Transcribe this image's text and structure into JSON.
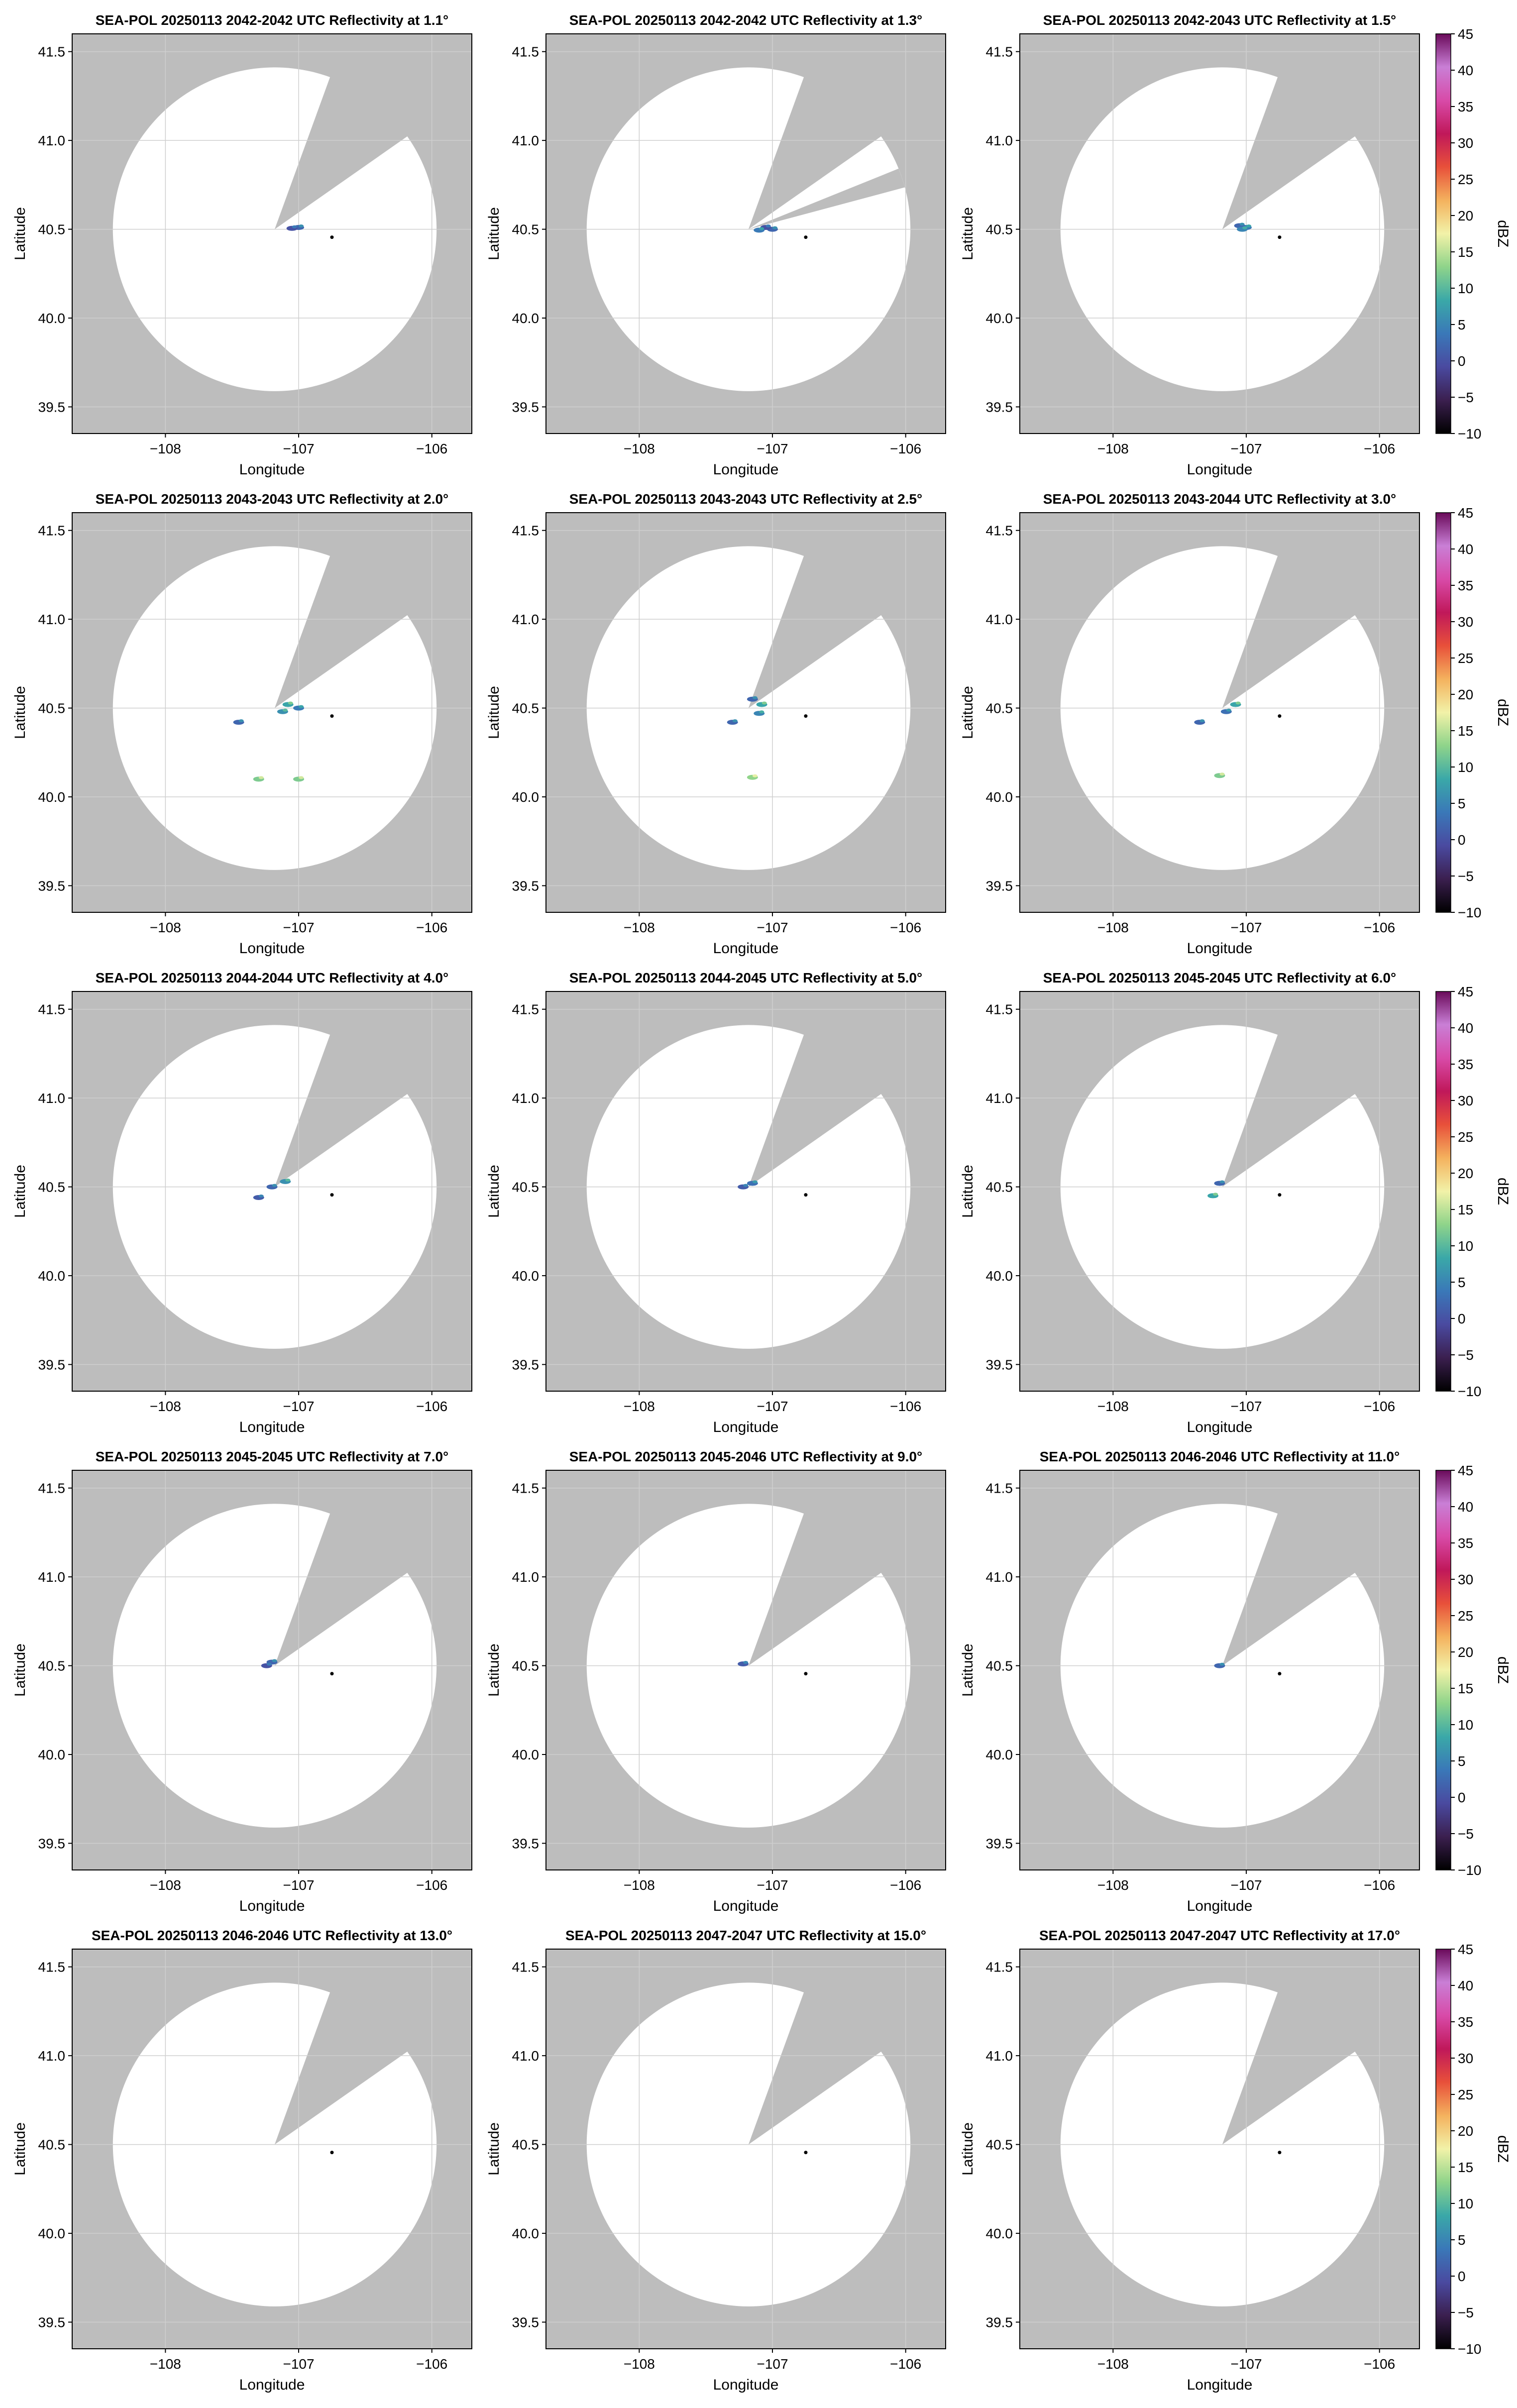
{
  "figure": {
    "colors": {
      "no_data_gray": "#bdbdbd",
      "sweep_white": "#ffffff",
      "grid": "#cfcfcf",
      "frame": "#000000"
    },
    "radar_site": {
      "lon": -107.18,
      "lat": 40.5
    },
    "marker": {
      "lon": -106.75,
      "lat": 40.455
    },
    "blocked_sector_deg": [
      20,
      55
    ],
    "rings_visible": false
  },
  "chart_data": [
    {
      "type": "heatmap",
      "title": "SEA-POL 20250113 2042-2042 UTC Reflectivity at 1.1°",
      "xlabel": "Longitude",
      "ylabel": "Latitude",
      "xlim": [
        -108.7,
        -105.7
      ],
      "ylim": [
        39.35,
        41.6
      ],
      "xticks": [
        -108,
        -107,
        -106
      ],
      "xtick_labels": [
        "−108",
        "−107",
        "−106"
      ],
      "yticks": [
        39.5,
        40.0,
        40.5,
        41.0,
        41.5
      ],
      "ytick_labels": [
        "39.5",
        "40.0",
        "40.5",
        "41.0",
        "41.5"
      ],
      "grid": true,
      "colorbar": false,
      "echoes": [
        {
          "lon": -107.0,
          "lat": 40.51,
          "dbz": 2
        },
        {
          "lon": -107.05,
          "lat": 40.505,
          "dbz": 0
        }
      ]
    },
    {
      "type": "heatmap",
      "title": "SEA-POL 20250113 2042-2042 UTC Reflectivity at 1.3°",
      "xlabel": "Longitude",
      "ylabel": "Latitude",
      "xlim": [
        -108.7,
        -105.7
      ],
      "ylim": [
        39.35,
        41.6
      ],
      "xticks": [
        -108,
        -107,
        -106
      ],
      "xtick_labels": [
        "−108",
        "−107",
        "−106"
      ],
      "yticks": [
        39.5,
        40.0,
        40.5,
        41.0,
        41.5
      ],
      "ytick_labels": [
        "39.5",
        "40.0",
        "40.5",
        "41.0",
        "41.5"
      ],
      "grid": true,
      "colorbar": false,
      "extra_blocked_sector_deg": [
        68,
        75
      ],
      "echoes": [
        {
          "lon": -107.0,
          "lat": 40.5,
          "dbz": 2
        },
        {
          "lon": -107.05,
          "lat": 40.51,
          "dbz": 0
        },
        {
          "lon": -107.1,
          "lat": 40.495,
          "dbz": 4
        }
      ]
    },
    {
      "type": "heatmap",
      "title": "SEA-POL 20250113 2042-2043 UTC Reflectivity at 1.5°",
      "xlabel": "Longitude",
      "ylabel": "Latitude",
      "xlim": [
        -108.7,
        -105.7
      ],
      "ylim": [
        39.35,
        41.6
      ],
      "xticks": [
        -108,
        -107,
        -106
      ],
      "xtick_labels": [
        "−108",
        "−107",
        "−106"
      ],
      "yticks": [
        39.5,
        40.0,
        40.5,
        41.0,
        41.5
      ],
      "ytick_labels": [
        "39.5",
        "40.0",
        "40.5",
        "41.0",
        "41.5"
      ],
      "grid": true,
      "colorbar": true,
      "colorbar_label": "dBZ",
      "echoes": [
        {
          "lon": -107.0,
          "lat": 40.51,
          "dbz": 4
        },
        {
          "lon": -107.05,
          "lat": 40.52,
          "dbz": 2
        },
        {
          "lon": -107.03,
          "lat": 40.5,
          "dbz": 5
        }
      ]
    },
    {
      "type": "heatmap",
      "title": "SEA-POL 20250113 2043-2043 UTC Reflectivity at 2.0°",
      "xlabel": "Longitude",
      "ylabel": "Latitude",
      "xlim": [
        -108.7,
        -105.7
      ],
      "ylim": [
        39.35,
        41.6
      ],
      "xticks": [
        -108,
        -107,
        -106
      ],
      "xtick_labels": [
        "−108",
        "−107",
        "−106"
      ],
      "yticks": [
        39.5,
        40.0,
        40.5,
        41.0,
        41.5
      ],
      "ytick_labels": [
        "39.5",
        "40.0",
        "40.5",
        "41.0",
        "41.5"
      ],
      "grid": true,
      "colorbar": false,
      "echoes": [
        {
          "lon": -107.08,
          "lat": 40.52,
          "dbz": 8
        },
        {
          "lon": -107.12,
          "lat": 40.48,
          "dbz": 6
        },
        {
          "lon": -107.0,
          "lat": 40.5,
          "dbz": 4
        },
        {
          "lon": -107.45,
          "lat": 40.42,
          "dbz": 2
        },
        {
          "lon": -107.3,
          "lat": 40.1,
          "dbz": 12
        },
        {
          "lon": -107.0,
          "lat": 40.1,
          "dbz": 12
        }
      ]
    },
    {
      "type": "heatmap",
      "title": "SEA-POL 20250113 2043-2043 UTC Reflectivity at 2.5°",
      "xlabel": "Longitude",
      "ylabel": "Latitude",
      "xlim": [
        -108.7,
        -105.7
      ],
      "ylim": [
        39.35,
        41.6
      ],
      "xticks": [
        -108,
        -107,
        -106
      ],
      "xtick_labels": [
        "−108",
        "−107",
        "−106"
      ],
      "yticks": [
        39.5,
        40.0,
        40.5,
        41.0,
        41.5
      ],
      "ytick_labels": [
        "39.5",
        "40.0",
        "40.5",
        "41.0",
        "41.5"
      ],
      "grid": true,
      "colorbar": false,
      "echoes": [
        {
          "lon": -107.08,
          "lat": 40.52,
          "dbz": 8
        },
        {
          "lon": -107.15,
          "lat": 40.55,
          "dbz": 2
        },
        {
          "lon": -107.1,
          "lat": 40.47,
          "dbz": 5
        },
        {
          "lon": -107.3,
          "lat": 40.42,
          "dbz": 2
        },
        {
          "lon": -107.15,
          "lat": 40.11,
          "dbz": 13
        }
      ]
    },
    {
      "type": "heatmap",
      "title": "SEA-POL 20250113 2043-2044 UTC Reflectivity at 3.0°",
      "xlabel": "Longitude",
      "ylabel": "Latitude",
      "xlim": [
        -108.7,
        -105.7
      ],
      "ylim": [
        39.35,
        41.6
      ],
      "xticks": [
        -108,
        -107,
        -106
      ],
      "xtick_labels": [
        "−108",
        "−107",
        "−106"
      ],
      "yticks": [
        39.5,
        40.0,
        40.5,
        41.0,
        41.5
      ],
      "ytick_labels": [
        "39.5",
        "40.0",
        "40.5",
        "41.0",
        "41.5"
      ],
      "grid": true,
      "colorbar": true,
      "colorbar_label": "dBZ",
      "echoes": [
        {
          "lon": -107.08,
          "lat": 40.52,
          "dbz": 8
        },
        {
          "lon": -107.15,
          "lat": 40.48,
          "dbz": 3
        },
        {
          "lon": -107.35,
          "lat": 40.42,
          "dbz": 2
        },
        {
          "lon": -107.2,
          "lat": 40.12,
          "dbz": 12
        }
      ]
    },
    {
      "type": "heatmap",
      "title": "SEA-POL 20250113 2044-2044 UTC Reflectivity at 4.0°",
      "xlabel": "Longitude",
      "ylabel": "Latitude",
      "xlim": [
        -108.7,
        -105.7
      ],
      "ylim": [
        39.35,
        41.6
      ],
      "xticks": [
        -108,
        -107,
        -106
      ],
      "xtick_labels": [
        "−108",
        "−107",
        "−106"
      ],
      "yticks": [
        39.5,
        40.0,
        40.5,
        41.0,
        41.5
      ],
      "ytick_labels": [
        "39.5",
        "40.0",
        "40.5",
        "41.0",
        "41.5"
      ],
      "grid": true,
      "colorbar": false,
      "echoes": [
        {
          "lon": -107.1,
          "lat": 40.53,
          "dbz": 6
        },
        {
          "lon": -107.2,
          "lat": 40.5,
          "dbz": 2
        },
        {
          "lon": -107.3,
          "lat": 40.44,
          "dbz": 1
        }
      ]
    },
    {
      "type": "heatmap",
      "title": "SEA-POL 20250113 2044-2045 UTC Reflectivity at 5.0°",
      "xlabel": "Longitude",
      "ylabel": "Latitude",
      "xlim": [
        -108.7,
        -105.7
      ],
      "ylim": [
        39.35,
        41.6
      ],
      "xticks": [
        -108,
        -107,
        -106
      ],
      "xtick_labels": [
        "−108",
        "−107",
        "−106"
      ],
      "yticks": [
        39.5,
        40.0,
        40.5,
        41.0,
        41.5
      ],
      "ytick_labels": [
        "39.5",
        "40.0",
        "40.5",
        "41.0",
        "41.5"
      ],
      "grid": true,
      "colorbar": false,
      "echoes": [
        {
          "lon": -107.15,
          "lat": 40.52,
          "dbz": 3
        },
        {
          "lon": -107.22,
          "lat": 40.5,
          "dbz": 1
        }
      ]
    },
    {
      "type": "heatmap",
      "title": "SEA-POL 20250113 2045-2045 UTC Reflectivity at 6.0°",
      "xlabel": "Longitude",
      "ylabel": "Latitude",
      "xlim": [
        -108.7,
        -105.7
      ],
      "ylim": [
        39.35,
        41.6
      ],
      "xticks": [
        -108,
        -107,
        -106
      ],
      "xtick_labels": [
        "−108",
        "−107",
        "−106"
      ],
      "yticks": [
        39.5,
        40.0,
        40.5,
        41.0,
        41.5
      ],
      "ytick_labels": [
        "39.5",
        "40.0",
        "40.5",
        "41.0",
        "41.5"
      ],
      "grid": true,
      "colorbar": true,
      "colorbar_label": "dBZ",
      "echoes": [
        {
          "lon": -107.2,
          "lat": 40.52,
          "dbz": 2
        },
        {
          "lon": -107.25,
          "lat": 40.45,
          "dbz": 8
        }
      ]
    },
    {
      "type": "heatmap",
      "title": "SEA-POL 20250113 2045-2045 UTC Reflectivity at 7.0°",
      "xlabel": "Longitude",
      "ylabel": "Latitude",
      "xlim": [
        -108.7,
        -105.7
      ],
      "ylim": [
        39.35,
        41.6
      ],
      "xticks": [
        -108,
        -107,
        -106
      ],
      "xtick_labels": [
        "−108",
        "−107",
        "−106"
      ],
      "yticks": [
        39.5,
        40.0,
        40.5,
        41.0,
        41.5
      ],
      "ytick_labels": [
        "39.5",
        "40.0",
        "40.5",
        "41.0",
        "41.5"
      ],
      "grid": true,
      "colorbar": false,
      "echoes": [
        {
          "lon": -107.2,
          "lat": 40.52,
          "dbz": 2
        },
        {
          "lon": -107.24,
          "lat": 40.5,
          "dbz": 0
        }
      ]
    },
    {
      "type": "heatmap",
      "title": "SEA-POL 20250113 2045-2046 UTC Reflectivity at 9.0°",
      "xlabel": "Longitude",
      "ylabel": "Latitude",
      "xlim": [
        -108.7,
        -105.7
      ],
      "ylim": [
        39.35,
        41.6
      ],
      "xticks": [
        -108,
        -107,
        -106
      ],
      "xtick_labels": [
        "−108",
        "−107",
        "−106"
      ],
      "yticks": [
        39.5,
        40.0,
        40.5,
        41.0,
        41.5
      ],
      "ytick_labels": [
        "39.5",
        "40.0",
        "40.5",
        "41.0",
        "41.5"
      ],
      "grid": true,
      "colorbar": false,
      "echoes": [
        {
          "lon": -107.22,
          "lat": 40.51,
          "dbz": 1
        }
      ]
    },
    {
      "type": "heatmap",
      "title": "SEA-POL 20250113 2046-2046 UTC Reflectivity at 11.0°",
      "xlabel": "Longitude",
      "ylabel": "Latitude",
      "xlim": [
        -108.7,
        -105.7
      ],
      "ylim": [
        39.35,
        41.6
      ],
      "xticks": [
        -108,
        -107,
        -106
      ],
      "xtick_labels": [
        "−108",
        "−107",
        "−106"
      ],
      "yticks": [
        39.5,
        40.0,
        40.5,
        41.0,
        41.5
      ],
      "ytick_labels": [
        "39.5",
        "40.0",
        "40.5",
        "41.0",
        "41.5"
      ],
      "grid": true,
      "colorbar": true,
      "colorbar_label": "dBZ",
      "echoes": [
        {
          "lon": -107.2,
          "lat": 40.5,
          "dbz": 2
        }
      ]
    },
    {
      "type": "heatmap",
      "title": "SEA-POL 20250113 2046-2046 UTC Reflectivity at 13.0°",
      "xlabel": "Longitude",
      "ylabel": "Latitude",
      "xlim": [
        -108.7,
        -105.7
      ],
      "ylim": [
        39.35,
        41.6
      ],
      "xticks": [
        -108,
        -107,
        -106
      ],
      "xtick_labels": [
        "−108",
        "−107",
        "−106"
      ],
      "yticks": [
        39.5,
        40.0,
        40.5,
        41.0,
        41.5
      ],
      "ytick_labels": [
        "39.5",
        "40.0",
        "40.5",
        "41.0",
        "41.5"
      ],
      "grid": true,
      "colorbar": false,
      "echoes": []
    },
    {
      "type": "heatmap",
      "title": "SEA-POL 20250113 2047-2047 UTC Reflectivity at 15.0°",
      "xlabel": "Longitude",
      "ylabel": "Latitude",
      "xlim": [
        -108.7,
        -105.7
      ],
      "ylim": [
        39.35,
        41.6
      ],
      "xticks": [
        -108,
        -107,
        -106
      ],
      "xtick_labels": [
        "−108",
        "−107",
        "−106"
      ],
      "yticks": [
        39.5,
        40.0,
        40.5,
        41.0,
        41.5
      ],
      "ytick_labels": [
        "39.5",
        "40.0",
        "40.5",
        "41.0",
        "41.5"
      ],
      "grid": true,
      "colorbar": false,
      "echoes": []
    },
    {
      "type": "heatmap",
      "title": "SEA-POL 20250113 2047-2047 UTC Reflectivity at 17.0°",
      "xlabel": "Longitude",
      "ylabel": "Latitude",
      "xlim": [
        -108.7,
        -105.7
      ],
      "ylim": [
        39.35,
        41.6
      ],
      "xticks": [
        -108,
        -107,
        -106
      ],
      "xtick_labels": [
        "−108",
        "−107",
        "−106"
      ],
      "yticks": [
        39.5,
        40.0,
        40.5,
        41.0,
        41.5
      ],
      "ytick_labels": [
        "39.5",
        "40.0",
        "40.5",
        "41.0",
        "41.5"
      ],
      "grid": true,
      "colorbar": true,
      "colorbar_label": "dBZ",
      "echoes": []
    }
  ],
  "colorbar": {
    "label": "dBZ",
    "range": [
      -10,
      45
    ],
    "ticks": [
      -10,
      -5,
      0,
      5,
      10,
      15,
      20,
      25,
      30,
      35,
      40,
      45
    ],
    "tick_labels": [
      "−10",
      "−5",
      "0",
      "5",
      "10",
      "15",
      "20",
      "25",
      "30",
      "35",
      "40",
      "45"
    ],
    "stops": [
      "#000000",
      "#3b1f4f",
      "#4a4aa0",
      "#3a78b8",
      "#3aa8a8",
      "#8fd48a",
      "#f2f2a8",
      "#f4b25e",
      "#e8503a",
      "#c0185a",
      "#d84aa8",
      "#c97fd6",
      "#6a0a5a"
    ]
  }
}
